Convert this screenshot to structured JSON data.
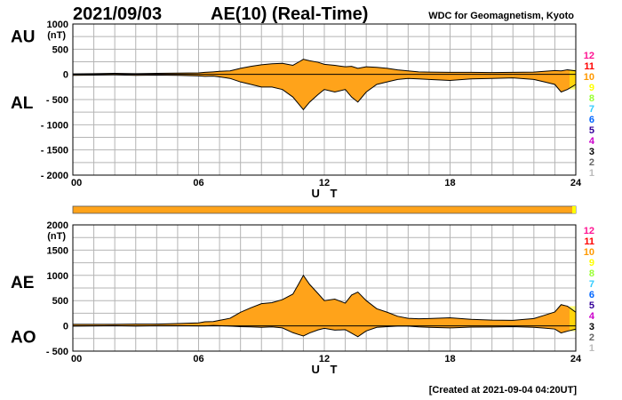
{
  "header": {
    "date": "2021/09/03",
    "title": "AE(10) (Real-Time)",
    "organization": "WDC for Geomagnetism, Kyoto"
  },
  "footer": "[Created at 2021-09-04 04:20UT]",
  "colors": {
    "fill": "#ffa31a",
    "recent_fill": "#ffff00",
    "grid": "#b4b4b4",
    "line": "#000000"
  },
  "station_counts": [
    {
      "label": "12",
      "color": "#ff1493"
    },
    {
      "label": "11",
      "color": "#ff0000"
    },
    {
      "label": "10",
      "color": "#ff9900"
    },
    {
      "label": "9",
      "color": "#ffff00"
    },
    {
      "label": "8",
      "color": "#99ff33"
    },
    {
      "label": "7",
      "color": "#33ccff"
    },
    {
      "label": "6",
      "color": "#0066ff"
    },
    {
      "label": "5",
      "color": "#330099"
    },
    {
      "label": "4",
      "color": "#cc00cc"
    },
    {
      "label": "3",
      "color": "#000000"
    },
    {
      "label": "2",
      "color": "#666666"
    },
    {
      "label": "1",
      "color": "#bbbbbb"
    }
  ],
  "chart_data": [
    {
      "type": "area",
      "title": "AU / AL",
      "xlabel": "U T",
      "ylabel": "(nT)",
      "side_labels": [
        "AU",
        "AL"
      ],
      "xlim": [
        0,
        24
      ],
      "ylim": [
        -2000,
        1000
      ],
      "x_ticks": [
        "00",
        "06",
        "12",
        "18",
        "24"
      ],
      "y_ticks": [
        "1000",
        "500",
        "0",
        "- 500",
        "- 1000",
        "- 1500",
        "- 2000"
      ],
      "y_tick_values": [
        1000,
        500,
        0,
        -500,
        -1000,
        -1500,
        -2000
      ],
      "grid": true,
      "x": [
        0,
        1,
        2,
        3,
        4,
        5,
        6,
        6.3,
        6.7,
        7,
        7.5,
        8,
        8.5,
        9,
        9.5,
        10,
        10.5,
        10.8,
        11,
        11.3,
        11.7,
        12,
        12.5,
        13,
        13.3,
        13.6,
        14,
        14.5,
        15,
        15.5,
        16,
        16.5,
        17,
        18,
        19,
        20,
        21,
        22,
        22.5,
        23,
        23.3,
        23.6,
        24
      ],
      "series": [
        {
          "name": "AU",
          "values": [
            10,
            15,
            20,
            15,
            20,
            25,
            30,
            40,
            50,
            60,
            70,
            120,
            160,
            190,
            210,
            220,
            180,
            250,
            300,
            270,
            240,
            200,
            180,
            150,
            160,
            120,
            150,
            140,
            120,
            90,
            70,
            50,
            45,
            40,
            40,
            35,
            40,
            45,
            60,
            75,
            70,
            90,
            70
          ]
        },
        {
          "name": "AL",
          "values": [
            -20,
            -15,
            -10,
            -20,
            -15,
            -20,
            -30,
            -40,
            -35,
            -50,
            -80,
            -150,
            -200,
            -250,
            -250,
            -300,
            -450,
            -600,
            -700,
            -550,
            -400,
            -300,
            -350,
            -300,
            -450,
            -550,
            -350,
            -200,
            -150,
            -100,
            -80,
            -90,
            -100,
            -120,
            -90,
            -80,
            -70,
            -100,
            -150,
            -200,
            -350,
            -300,
            -200
          ]
        }
      ]
    },
    {
      "type": "area",
      "title": "AE / AO",
      "xlabel": "U T",
      "ylabel": "(nT)",
      "side_labels": [
        "AE",
        "AO"
      ],
      "xlim": [
        0,
        24
      ],
      "ylim": [
        -500,
        2000
      ],
      "x_ticks": [
        "00",
        "06",
        "12",
        "18",
        "24"
      ],
      "y_ticks": [
        "2000",
        "1500",
        "1000",
        "500",
        "0",
        "- 500"
      ],
      "y_tick_values": [
        2000,
        1500,
        1000,
        500,
        0,
        -500
      ],
      "grid": true,
      "x": [
        0,
        1,
        2,
        3,
        4,
        5,
        6,
        6.3,
        6.7,
        7,
        7.5,
        8,
        8.5,
        9,
        9.5,
        10,
        10.5,
        10.8,
        11,
        11.3,
        11.7,
        12,
        12.5,
        13,
        13.3,
        13.6,
        14,
        14.5,
        15,
        15.5,
        16,
        16.5,
        17,
        18,
        19,
        20,
        21,
        22,
        22.5,
        23,
        23.3,
        23.6,
        24
      ],
      "series": [
        {
          "name": "AE",
          "values": [
            30,
            30,
            30,
            35,
            35,
            45,
            60,
            80,
            85,
            110,
            150,
            270,
            360,
            440,
            460,
            520,
            630,
            850,
            1000,
            820,
            640,
            500,
            530,
            450,
            610,
            670,
            500,
            340,
            270,
            190,
            150,
            140,
            145,
            160,
            130,
            115,
            110,
            145,
            210,
            275,
            420,
            390,
            270
          ]
        },
        {
          "name": "AO",
          "values": [
            -5,
            0,
            5,
            -3,
            3,
            3,
            0,
            0,
            8,
            5,
            -5,
            -15,
            -20,
            -30,
            -20,
            -40,
            -135,
            -175,
            -200,
            -140,
            -80,
            -50,
            -85,
            -75,
            -145,
            -215,
            -100,
            -30,
            -15,
            -5,
            -5,
            -20,
            -28,
            -40,
            -25,
            -23,
            -15,
            -28,
            -45,
            -63,
            -140,
            -105,
            -65
          ]
        }
      ]
    }
  ]
}
